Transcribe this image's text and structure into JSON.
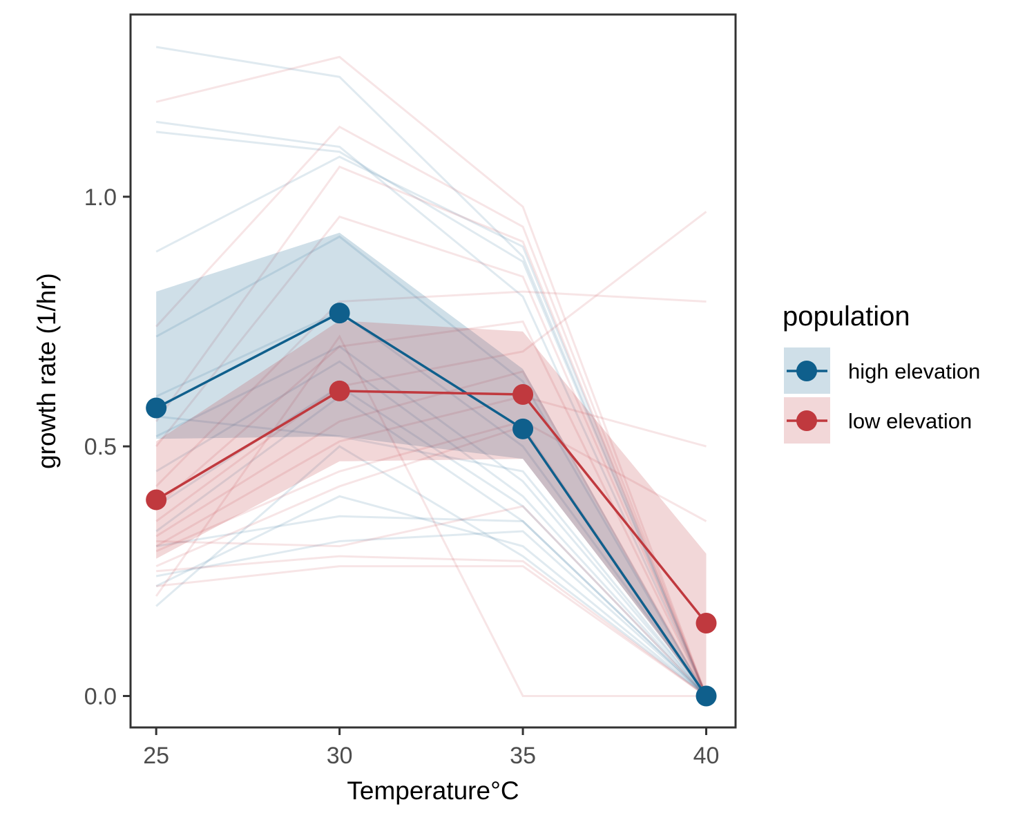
{
  "chart_data": {
    "type": "line",
    "xlabel": "Temperature°C",
    "ylabel": "growth rate (1/hr)",
    "x": [
      25,
      30,
      35,
      40
    ],
    "x_ticks": [
      "25",
      "30",
      "35",
      "40"
    ],
    "y_ticks": [
      "0.0",
      "0.5",
      "1.0"
    ],
    "xlim": [
      24.3,
      40.8
    ],
    "ylim": [
      -0.063,
      1.365
    ],
    "grid": false,
    "legend": {
      "title": "population",
      "position": "right"
    },
    "series": [
      {
        "name": "high elevation",
        "color": "#0f5f8c",
        "mean": [
          0.577,
          0.767,
          0.535,
          0.0
        ],
        "ribbon_lower": [
          0.515,
          0.52,
          0.475,
          0.0
        ],
        "ribbon_upper": [
          0.81,
          0.928,
          0.655,
          0.0
        ],
        "individual_lines": [
          [
            1.3,
            1.24,
            0.88,
            0.0
          ],
          [
            1.15,
            1.1,
            0.8,
            0.0
          ],
          [
            1.13,
            1.09,
            0.87,
            0.0
          ],
          [
            0.89,
            1.08,
            0.9,
            0.0
          ],
          [
            0.72,
            0.92,
            0.63,
            0.0
          ],
          [
            0.6,
            0.77,
            0.5,
            0.0
          ],
          [
            0.56,
            0.52,
            0.45,
            0.0
          ],
          [
            0.52,
            0.7,
            0.43,
            0.0
          ],
          [
            0.45,
            0.67,
            0.4,
            0.0
          ],
          [
            0.38,
            0.62,
            0.38,
            0.0
          ],
          [
            0.33,
            0.6,
            0.35,
            0.0
          ],
          [
            0.3,
            0.36,
            0.35,
            0.0
          ],
          [
            0.24,
            0.31,
            0.33,
            0.0
          ],
          [
            0.22,
            0.4,
            0.3,
            0.0
          ],
          [
            0.18,
            0.5,
            0.28,
            0.0
          ]
        ]
      },
      {
        "name": "low elevation",
        "color": "#c0393e",
        "mean": [
          0.393,
          0.611,
          0.604,
          0.146
        ],
        "ribbon_lower": [
          0.275,
          0.47,
          0.475,
          0.0
        ],
        "ribbon_upper": [
          0.51,
          0.752,
          0.73,
          0.285
        ],
        "individual_lines": [
          [
            1.19,
            1.28,
            0.98,
            0.0
          ],
          [
            0.74,
            1.14,
            0.94,
            0.0
          ],
          [
            0.55,
            1.06,
            0.91,
            0.0
          ],
          [
            0.5,
            0.96,
            0.84,
            0.0
          ],
          [
            0.42,
            0.79,
            0.81,
            0.79
          ],
          [
            0.38,
            0.7,
            0.75,
            0.0
          ],
          [
            0.35,
            0.62,
            0.69,
            0.97
          ],
          [
            0.32,
            0.55,
            0.65,
            0.0
          ],
          [
            0.3,
            0.51,
            0.6,
            0.5
          ],
          [
            0.29,
            0.45,
            0.55,
            0.35
          ],
          [
            0.26,
            0.42,
            0.54,
            0.0
          ],
          [
            0.31,
            0.3,
            0.38,
            0.0
          ],
          [
            0.25,
            0.28,
            0.27,
            0.0
          ],
          [
            0.22,
            0.26,
            0.26,
            0.0
          ],
          [
            0.2,
            0.72,
            0.0,
            0.0
          ]
        ]
      }
    ]
  }
}
